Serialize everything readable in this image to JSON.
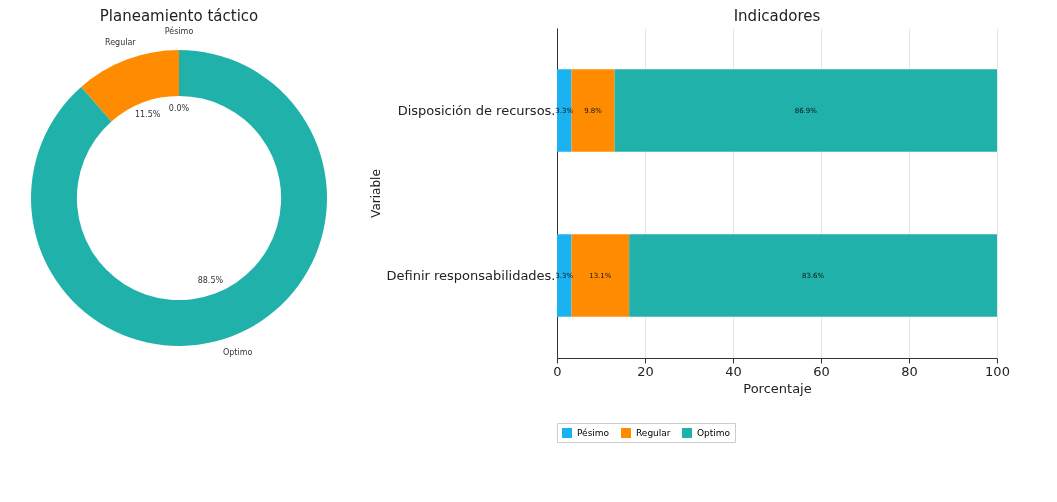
{
  "chart_data": [
    {
      "type": "donut",
      "title": "Planeamiento táctico",
      "categories": [
        "Pésimo",
        "Regular",
        "Optimo"
      ],
      "values": [
        0.0,
        11.5,
        88.5
      ],
      "colors": [
        "#1ab2f0",
        "#ff8c00",
        "#20b2aa"
      ],
      "value_labels": [
        "0.0%",
        "11.5%",
        "88.5%"
      ]
    },
    {
      "type": "bar",
      "orientation": "horizontal",
      "stacked": true,
      "title": "Indicadores",
      "xlabel": "Porcentaje",
      "ylabel": "Variable",
      "categories": [
        "Disposición de recursos.",
        "Definir responsabilidades."
      ],
      "series": [
        {
          "name": "Pésimo",
          "color": "#1ab2f0",
          "values": [
            3.3,
            3.3
          ],
          "value_labels": [
            "3.3%",
            "3.3%"
          ]
        },
        {
          "name": "Regular",
          "color": "#ff8c00",
          "values": [
            9.8,
            13.1
          ],
          "value_labels": [
            "9.8%",
            "13.1%"
          ]
        },
        {
          "name": "Optimo",
          "color": "#20b2aa",
          "values": [
            86.9,
            83.6
          ],
          "value_labels": [
            "86.9%",
            "83.6%"
          ]
        }
      ],
      "xlim": [
        0,
        100
      ],
      "xticks": [
        0,
        20,
        40,
        60,
        80,
        100
      ],
      "grid": "x",
      "legend": "bottom"
    }
  ]
}
